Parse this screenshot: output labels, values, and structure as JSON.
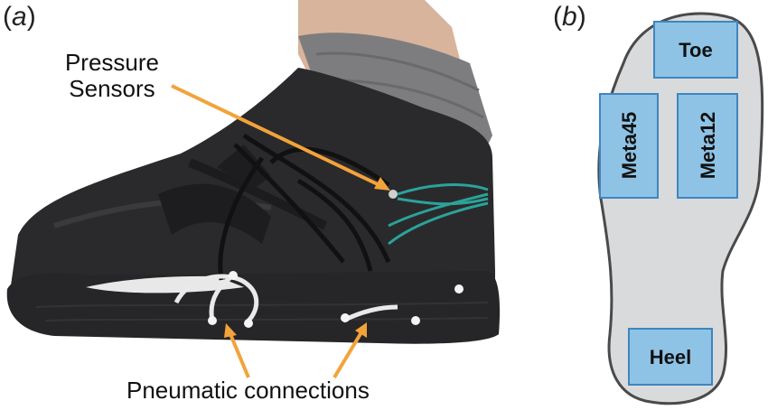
{
  "panel_a": {
    "label": "a",
    "annotations": {
      "pressure_sensors": [
        "Pressure",
        "Sensors"
      ],
      "pneumatic_connections": "Pneumatic connections"
    }
  },
  "panel_b": {
    "label": "b",
    "zones": {
      "toe": "Toe",
      "meta45": "Meta45",
      "meta12": "Meta12",
      "heel": "Heel"
    }
  },
  "colors": {
    "arrow": "#f2a33a",
    "zone_fill": "#8ec3e6",
    "zone_stroke": "#3e86c0",
    "sole_fill": "#d9dadc",
    "sole_outline": "#4a4a4a"
  }
}
